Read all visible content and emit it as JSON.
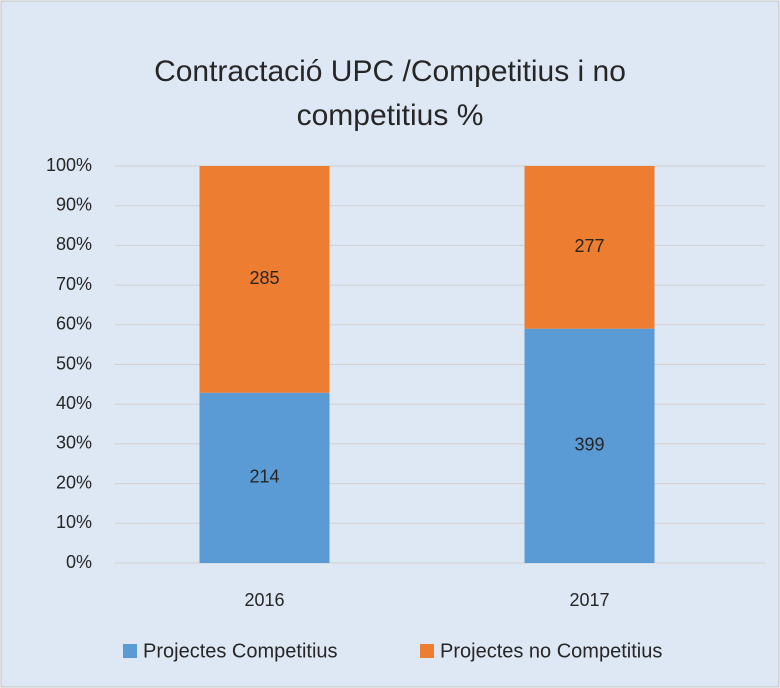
{
  "chart_data": {
    "type": "bar",
    "stacking": "percent",
    "title": "Contractació UPC /Competitius i no competitius %",
    "categories": [
      "2016",
      "2017"
    ],
    "series": [
      {
        "name": "Projectes Competitius",
        "color": "#5b9bd5",
        "values": [
          214,
          399
        ]
      },
      {
        "name": "Projectes no Competitius",
        "color": "#ed7d31",
        "values": [
          285,
          277
        ]
      }
    ],
    "ylim": [
      0,
      100
    ],
    "yticks": [
      {
        "value": 0,
        "label": "0%"
      },
      {
        "value": 10,
        "label": "10%"
      },
      {
        "value": 20,
        "label": "20%"
      },
      {
        "value": 30,
        "label": "30%"
      },
      {
        "value": 40,
        "label": "40%"
      },
      {
        "value": 50,
        "label": "50%"
      },
      {
        "value": 60,
        "label": "60%"
      },
      {
        "value": 70,
        "label": "70%"
      },
      {
        "value": 80,
        "label": "80%"
      },
      {
        "value": 90,
        "label": "90%"
      },
      {
        "value": 100,
        "label": "100%"
      }
    ],
    "grid": true,
    "legend": "bottom"
  }
}
